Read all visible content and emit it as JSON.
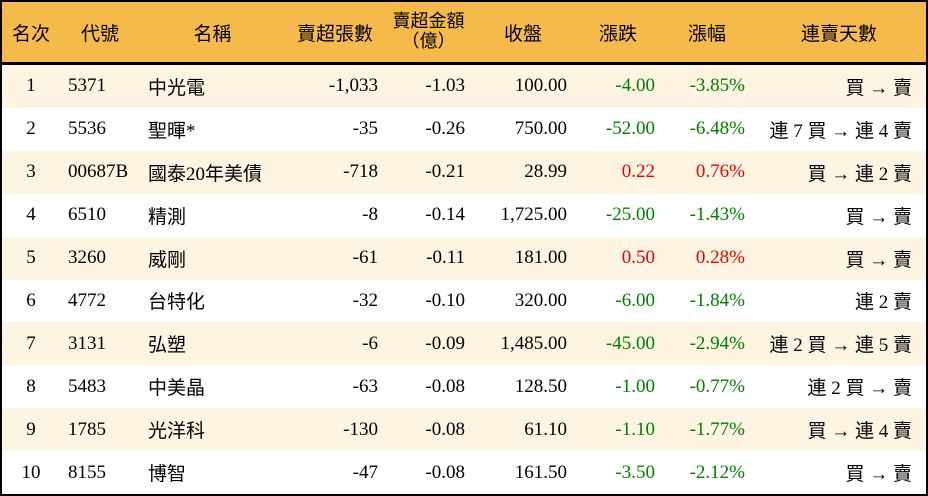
{
  "colors": {
    "header_bg": "#F6BA4B",
    "row_odd": "#FDF5E2",
    "row_even": "#FFFFFF",
    "up_red": "#EE0000",
    "down_green": "#008000",
    "border": "#000000",
    "text": "#000000"
  },
  "table": {
    "columns": [
      {
        "key": "rank",
        "label": "名次",
        "align": "center"
      },
      {
        "key": "code",
        "label": "代號",
        "align": "left"
      },
      {
        "key": "name",
        "label": "名稱",
        "align": "left"
      },
      {
        "key": "sell_volume",
        "label": "賣超張數",
        "align": "right"
      },
      {
        "key": "sell_amount",
        "label": "賣超金額",
        "label2": "（億）",
        "align": "right"
      },
      {
        "key": "close",
        "label": "收盤",
        "align": "right"
      },
      {
        "key": "change",
        "label": "漲跌",
        "align": "right"
      },
      {
        "key": "change_pct",
        "label": "漲幅",
        "align": "right"
      },
      {
        "key": "streak",
        "label": "連賣天數",
        "align": "right"
      }
    ],
    "rows": [
      {
        "rank": "1",
        "code": "5371",
        "name": "中光電",
        "sell_volume": "-1,033",
        "sell_amount": "-1.03",
        "close": "100.00",
        "change": "-4.00",
        "change_pct": "-3.85%",
        "trend": "down",
        "streak": "買 → 賣"
      },
      {
        "rank": "2",
        "code": "5536",
        "name": "聖暉*",
        "sell_volume": "-35",
        "sell_amount": "-0.26",
        "close": "750.00",
        "change": "-52.00",
        "change_pct": "-6.48%",
        "trend": "down",
        "streak": "連 7 買 → 連 4 賣"
      },
      {
        "rank": "3",
        "code": "00687B",
        "name": "國泰20年美債",
        "sell_volume": "-718",
        "sell_amount": "-0.21",
        "close": "28.99",
        "change": "0.22",
        "change_pct": "0.76%",
        "trend": "up",
        "streak": "買 → 連 2 賣"
      },
      {
        "rank": "4",
        "code": "6510",
        "name": "精測",
        "sell_volume": "-8",
        "sell_amount": "-0.14",
        "close": "1,725.00",
        "change": "-25.00",
        "change_pct": "-1.43%",
        "trend": "down",
        "streak": "買 → 賣"
      },
      {
        "rank": "5",
        "code": "3260",
        "name": "威剛",
        "sell_volume": "-61",
        "sell_amount": "-0.11",
        "close": "181.00",
        "change": "0.50",
        "change_pct": "0.28%",
        "trend": "up",
        "streak": "買 → 賣"
      },
      {
        "rank": "6",
        "code": "4772",
        "name": "台特化",
        "sell_volume": "-32",
        "sell_amount": "-0.10",
        "close": "320.00",
        "change": "-6.00",
        "change_pct": "-1.84%",
        "trend": "down",
        "streak": "連 2 賣"
      },
      {
        "rank": "7",
        "code": "3131",
        "name": "弘塑",
        "sell_volume": "-6",
        "sell_amount": "-0.09",
        "close": "1,485.00",
        "change": "-45.00",
        "change_pct": "-2.94%",
        "trend": "down",
        "streak": "連 2 買 → 連 5 賣"
      },
      {
        "rank": "8",
        "code": "5483",
        "name": "中美晶",
        "sell_volume": "-63",
        "sell_amount": "-0.08",
        "close": "128.50",
        "change": "-1.00",
        "change_pct": "-0.77%",
        "trend": "down",
        "streak": "連 2 買 → 賣"
      },
      {
        "rank": "9",
        "code": "1785",
        "name": "光洋科",
        "sell_volume": "-130",
        "sell_amount": "-0.08",
        "close": "61.10",
        "change": "-1.10",
        "change_pct": "-1.77%",
        "trend": "down",
        "streak": "買 → 連 4 賣"
      },
      {
        "rank": "10",
        "code": "8155",
        "name": "博智",
        "sell_volume": "-47",
        "sell_amount": "-0.08",
        "close": "161.50",
        "change": "-3.50",
        "change_pct": "-2.12%",
        "trend": "down",
        "streak": "買 → 賣"
      }
    ]
  }
}
